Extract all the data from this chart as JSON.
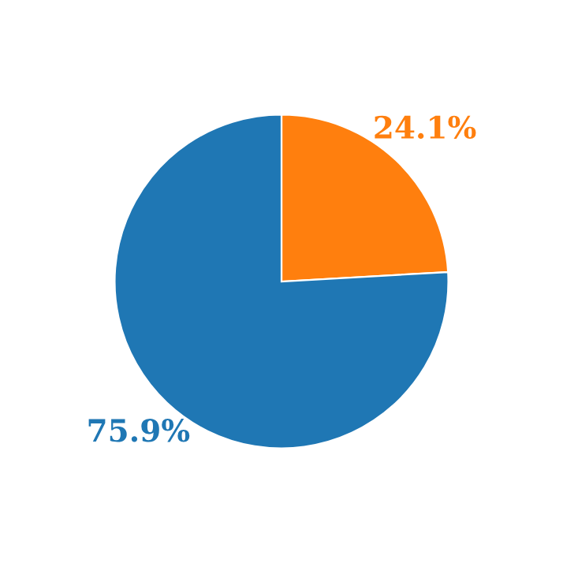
{
  "chart_data": {
    "type": "pie",
    "categories": [
      null,
      null
    ],
    "values": [
      24.1,
      75.9
    ],
    "value_labels": [
      "24.1%",
      "75.9%"
    ],
    "colors": [
      "#ff7f0e",
      "#1f77b4"
    ],
    "legend": false
  }
}
